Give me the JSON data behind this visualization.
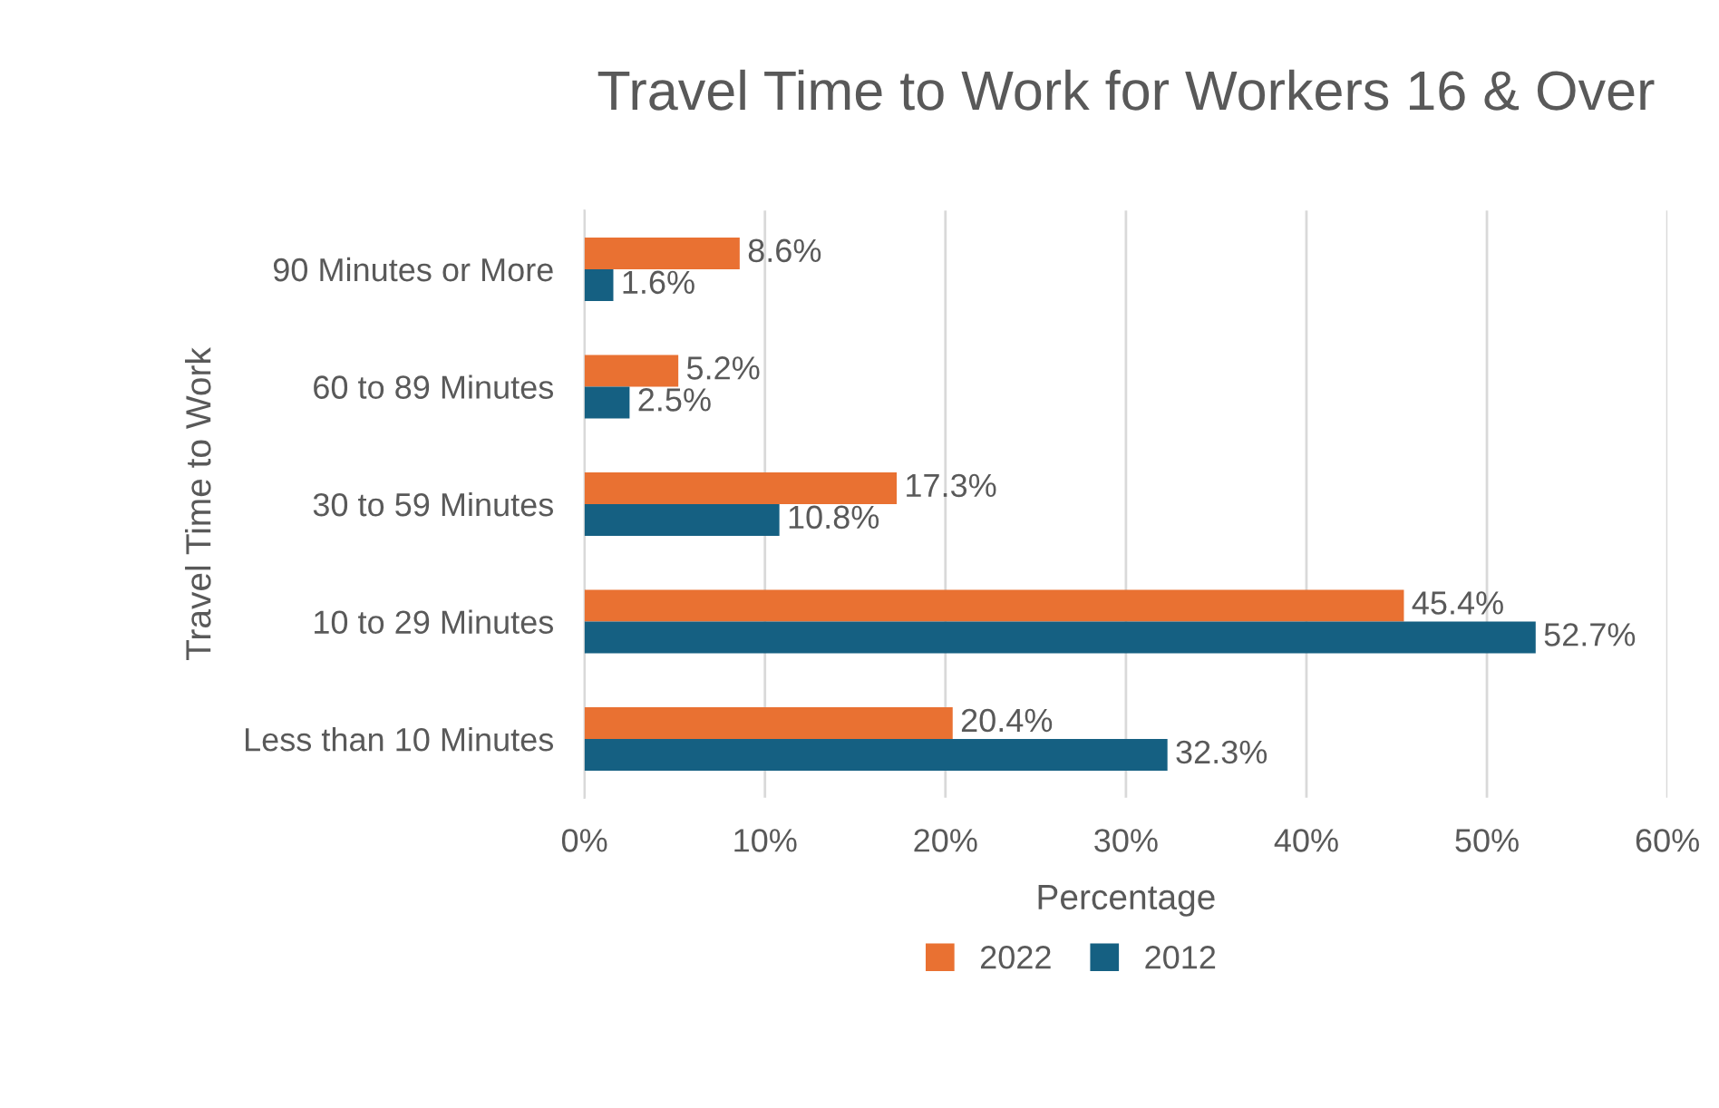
{
  "chart_data": {
    "type": "bar",
    "orientation": "horizontal",
    "title": "Travel Time to Work for Workers 16 & Over",
    "xlabel": "Percentage",
    "ylabel": "Travel Time to Work",
    "categories": [
      "90 Minutes or More",
      "60 to 89 Minutes",
      "30 to 59 Minutes",
      "10 to 29 Minutes",
      "Less than 10 Minutes"
    ],
    "series": [
      {
        "name": "2022",
        "color": "#e97132",
        "values": [
          8.6,
          5.2,
          17.3,
          45.4,
          20.4
        ],
        "value_labels": [
          "8.6%",
          "5.2%",
          "17.3%",
          "45.4%",
          "20.4%"
        ]
      },
      {
        "name": "2012",
        "color": "#156082",
        "values": [
          1.6,
          2.5,
          10.8,
          52.7,
          32.3
        ],
        "value_labels": [
          "1.6%",
          "2.5%",
          "10.8%",
          "52.7%",
          "32.3%"
        ]
      }
    ],
    "xlim": [
      0,
      60
    ],
    "xticks": [
      {
        "value": 0,
        "label": "0%"
      },
      {
        "value": 10,
        "label": "10%"
      },
      {
        "value": 20,
        "label": "20%"
      },
      {
        "value": 30,
        "label": "30%"
      },
      {
        "value": 40,
        "label": "40%"
      },
      {
        "value": 50,
        "label": "50%"
      },
      {
        "value": 60,
        "label": "60%"
      }
    ],
    "grid": "x",
    "legend": "bottom"
  }
}
